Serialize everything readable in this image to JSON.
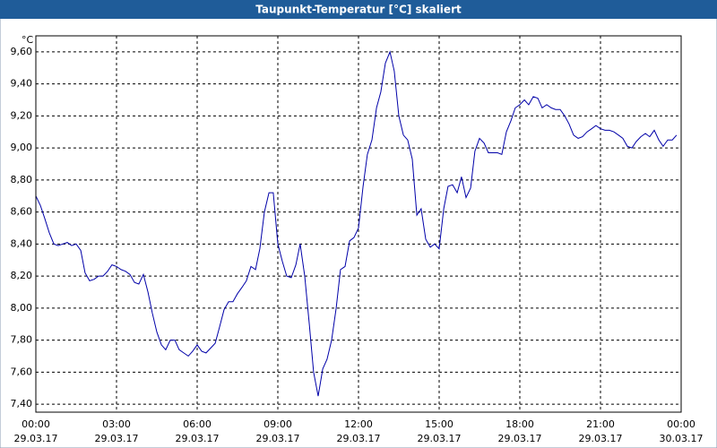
{
  "chart_data": {
    "type": "line",
    "title": "Taupunkt-Temperatur [°C] skaliert",
    "y_label": "°C",
    "color": "#0000a8",
    "grid": true,
    "xlim": [
      0,
      24
    ],
    "ylim": [
      7.35,
      9.7
    ],
    "xticks": [
      {
        "value": 0,
        "label": "00:00",
        "date": "29.03.17"
      },
      {
        "value": 3,
        "label": "03:00",
        "date": "29.03.17"
      },
      {
        "value": 6,
        "label": "06:00",
        "date": "29.03.17"
      },
      {
        "value": 9,
        "label": "09:00",
        "date": "29.03.17"
      },
      {
        "value": 12,
        "label": "12:00",
        "date": "29.03.17"
      },
      {
        "value": 15,
        "label": "15:00",
        "date": "29.03.17"
      },
      {
        "value": 18,
        "label": "18:00",
        "date": "29.03.17"
      },
      {
        "value": 21,
        "label": "21:00",
        "date": "29.03.17"
      },
      {
        "value": 24,
        "label": "00:00",
        "date": "30.03.17"
      }
    ],
    "yticks": [
      {
        "value": 7.4,
        "label": "7,40"
      },
      {
        "value": 7.6,
        "label": "7,60"
      },
      {
        "value": 7.8,
        "label": "7,80"
      },
      {
        "value": 8.0,
        "label": "8,00"
      },
      {
        "value": 8.2,
        "label": "8,20"
      },
      {
        "value": 8.4,
        "label": "8,40"
      },
      {
        "value": 8.6,
        "label": "8,60"
      },
      {
        "value": 8.8,
        "label": "8,80"
      },
      {
        "value": 9.0,
        "label": "9,00"
      },
      {
        "value": 9.2,
        "label": "9,20"
      },
      {
        "value": 9.4,
        "label": "9,40"
      },
      {
        "value": 9.6,
        "label": "9,60"
      }
    ],
    "x": [
      0,
      0.17,
      0.33,
      0.5,
      0.67,
      0.83,
      1,
      1.17,
      1.33,
      1.5,
      1.67,
      1.83,
      2,
      2.17,
      2.33,
      2.5,
      2.67,
      2.83,
      3,
      3.17,
      3.33,
      3.5,
      3.67,
      3.83,
      4,
      4.17,
      4.33,
      4.5,
      4.67,
      4.83,
      5,
      5.17,
      5.33,
      5.5,
      5.67,
      5.83,
      6,
      6.17,
      6.33,
      6.5,
      6.67,
      6.83,
      7,
      7.17,
      7.33,
      7.5,
      7.67,
      7.83,
      8,
      8.17,
      8.33,
      8.5,
      8.67,
      8.83,
      9,
      9.17,
      9.33,
      9.5,
      9.67,
      9.83,
      10,
      10.17,
      10.33,
      10.5,
      10.67,
      10.83,
      11,
      11.17,
      11.33,
      11.5,
      11.67,
      11.83,
      12,
      12.17,
      12.33,
      12.5,
      12.67,
      12.83,
      13,
      13.17,
      13.33,
      13.5,
      13.67,
      13.83,
      14,
      14.17,
      14.33,
      14.5,
      14.67,
      14.83,
      15,
      15.17,
      15.33,
      15.5,
      15.67,
      15.83,
      16,
      16.17,
      16.33,
      16.5,
      16.67,
      16.83,
      17,
      17.17,
      17.33,
      17.5,
      17.67,
      17.83,
      18,
      18.17,
      18.33,
      18.5,
      18.67,
      18.83,
      19,
      19.17,
      19.33,
      19.5,
      19.67,
      19.83,
      20,
      20.17,
      20.33,
      20.5,
      20.67,
      20.83,
      21,
      21.17,
      21.33,
      21.5,
      21.67,
      21.83,
      22,
      22.17,
      22.33,
      22.5,
      22.67,
      22.83,
      23,
      23.17,
      23.33,
      23.5,
      23.67,
      23.83
    ],
    "values": [
      8.7,
      8.64,
      8.56,
      8.47,
      8.4,
      8.39,
      8.4,
      8.41,
      8.39,
      8.4,
      8.36,
      8.22,
      8.17,
      8.18,
      8.2,
      8.2,
      8.23,
      8.27,
      8.26,
      8.24,
      8.23,
      8.21,
      8.16,
      8.15,
      8.21,
      8.1,
      7.97,
      7.85,
      7.77,
      7.74,
      7.8,
      7.8,
      7.74,
      7.72,
      7.7,
      7.73,
      7.77,
      7.73,
      7.72,
      7.75,
      7.78,
      7.88,
      7.99,
      8.04,
      8.04,
      8.09,
      8.13,
      8.17,
      8.26,
      8.24,
      8.37,
      8.6,
      8.72,
      8.72,
      8.4,
      8.29,
      8.2,
      8.19,
      8.27,
      8.4,
      8.2,
      7.9,
      7.6,
      7.45,
      7.62,
      7.68,
      7.8,
      8.0,
      8.24,
      8.26,
      8.42,
      8.44,
      8.5,
      8.76,
      8.96,
      9.05,
      9.25,
      9.35,
      9.53,
      9.6,
      9.48,
      9.2,
      9.08,
      9.05,
      8.93,
      8.58,
      8.62,
      8.43,
      8.38,
      8.4,
      8.37,
      8.62,
      8.76,
      8.77,
      8.72,
      8.82,
      8.69,
      8.75,
      8.98,
      9.06,
      9.03,
      8.97,
      8.97,
      8.97,
      8.96,
      9.1,
      9.17,
      9.25,
      9.27,
      9.3,
      9.27,
      9.32,
      9.31,
      9.25,
      9.27,
      9.25,
      9.24,
      9.24,
      9.2,
      9.15,
      9.08,
      9.06,
      9.07,
      9.1,
      9.12,
      9.14,
      9.12,
      9.11,
      9.11,
      9.1,
      9.08,
      9.06,
      9.01,
      9.0,
      9.04,
      9.07,
      9.09,
      9.07,
      9.11,
      9.05,
      9.01,
      9.05,
      9.05,
      9.08
    ]
  }
}
